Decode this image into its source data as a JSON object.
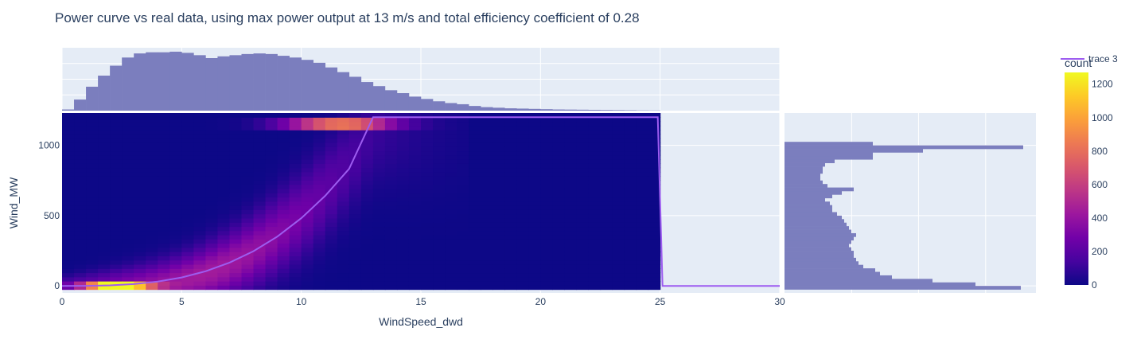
{
  "chart_data": {
    "type": "heatmap",
    "title": "Power curve vs real data, using max power output at 13 m/s and total efficiency coefficient of 0.28",
    "xlabel": "WindSpeed_dwd",
    "ylabel": "Wind_MW",
    "xlim": [
      0,
      30
    ],
    "ylim": [
      -50,
      1230
    ],
    "xticks": [
      "0",
      "5",
      "10",
      "15",
      "20",
      "25",
      "30"
    ],
    "yticks": [
      "0",
      "500",
      "1000"
    ],
    "colorbar": {
      "title": "count",
      "range": [
        0,
        1270
      ],
      "ticks": [
        "0",
        "200",
        "400",
        "600",
        "800",
        "1000",
        "1200"
      ],
      "colors": [
        "#0d0887",
        "#46039f",
        "#7201a8",
        "#9c179e",
        "#bd3786",
        "#d8576b",
        "#ed7953",
        "#fb9f3a",
        "#fdca26",
        "#f0f921"
      ]
    },
    "heatmap_domain": {
      "x": [
        0,
        25
      ],
      "y": [
        -25,
        1230
      ]
    },
    "series": [
      {
        "name": "trace 3",
        "type": "line",
        "color": "#9d5cf0",
        "x": [
          0,
          1,
          2,
          3,
          4,
          5,
          6,
          7,
          8,
          9,
          10,
          11,
          12,
          13,
          14,
          15,
          16,
          17,
          18,
          19,
          20,
          21,
          22,
          23,
          24,
          24.9,
          25.1,
          26,
          27,
          28,
          29,
          30
        ],
        "y": [
          0,
          0.5,
          4,
          13,
          31,
          60,
          104,
          166,
          247,
          351,
          482,
          641,
          833,
          1200,
          1200,
          1200,
          1200,
          1200,
          1200,
          1200,
          1200,
          1200,
          1200,
          1200,
          1200,
          1200,
          0,
          0,
          0,
          0,
          0,
          0
        ]
      }
    ],
    "histogram_x": {
      "bin_width": 0.5,
      "x_start": 0,
      "values": [
        0.02,
        0.19,
        0.41,
        0.6,
        0.77,
        0.91,
        0.98,
        1.0,
        1.0,
        1.01,
        0.99,
        0.95,
        0.9,
        0.93,
        0.95,
        0.97,
        0.98,
        0.97,
        0.94,
        0.91,
        0.87,
        0.82,
        0.74,
        0.66,
        0.58,
        0.49,
        0.42,
        0.35,
        0.3,
        0.24,
        0.2,
        0.16,
        0.13,
        0.11,
        0.08,
        0.06,
        0.05,
        0.04,
        0.035,
        0.03,
        0.025,
        0.02,
        0.018,
        0.016,
        0.014,
        0.012,
        0.01,
        0.008,
        0.005,
        0.004
      ]
    },
    "histogram_y": {
      "bin_width": 25,
      "y_start": -25,
      "values": [
        0.99,
        0.8,
        0.62,
        0.45,
        0.4,
        0.38,
        0.33,
        0.31,
        0.3,
        0.29,
        0.29,
        0.28,
        0.27,
        0.28,
        0.29,
        0.3,
        0.28,
        0.27,
        0.26,
        0.25,
        0.24,
        0.22,
        0.2,
        0.2,
        0.19,
        0.17,
        0.2,
        0.24,
        0.29,
        0.18,
        0.16,
        0.15,
        0.15,
        0.16,
        0.16,
        0.17,
        0.21,
        0.37,
        0.37,
        0.58,
        1.0,
        0.37
      ]
    }
  }
}
